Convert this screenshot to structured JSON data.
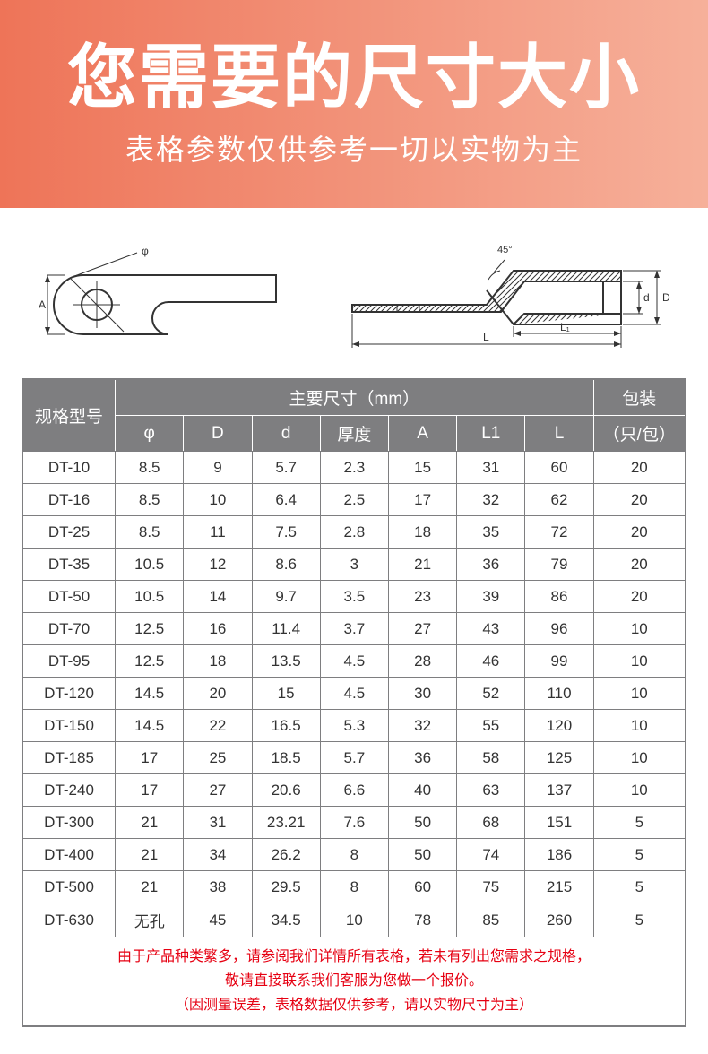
{
  "header": {
    "title": "您需要的尺寸大小",
    "subtitle": "表格参数仅供参考一切以实物为主",
    "gradient_from": "#ee7458",
    "gradient_to": "#f6b09a",
    "title_color": "#ffffff",
    "title_fontsize": 78,
    "subtitle_fontsize": 32
  },
  "diagram": {
    "stroke": "#333333",
    "angle_label": "45°",
    "dim_phi": "φ",
    "dim_A": "A",
    "dim_D": "D",
    "dim_d": "d",
    "dim_L": "L",
    "dim_L1": "L₁"
  },
  "table": {
    "header_bg": "#7e7e80",
    "header_fg": "#ffffff",
    "border_color": "#7e7e80",
    "model_header": "规格型号",
    "dims_header": "主要尺寸（mm）",
    "pack_header": "包装",
    "pack_sub": "（只/包）",
    "columns": [
      "φ",
      "D",
      "d",
      "厚度",
      "A",
      "L1",
      "L"
    ],
    "rows": [
      {
        "model": "DT-10",
        "vals": [
          "8.5",
          "9",
          "5.7",
          "2.3",
          "15",
          "31",
          "60"
        ],
        "pack": "20"
      },
      {
        "model": "DT-16",
        "vals": [
          "8.5",
          "10",
          "6.4",
          "2.5",
          "17",
          "32",
          "62"
        ],
        "pack": "20"
      },
      {
        "model": "DT-25",
        "vals": [
          "8.5",
          "11",
          "7.5",
          "2.8",
          "18",
          "35",
          "72"
        ],
        "pack": "20"
      },
      {
        "model": "DT-35",
        "vals": [
          "10.5",
          "12",
          "8.6",
          "3",
          "21",
          "36",
          "79"
        ],
        "pack": "20"
      },
      {
        "model": "DT-50",
        "vals": [
          "10.5",
          "14",
          "9.7",
          "3.5",
          "23",
          "39",
          "86"
        ],
        "pack": "20"
      },
      {
        "model": "DT-70",
        "vals": [
          "12.5",
          "16",
          "11.4",
          "3.7",
          "27",
          "43",
          "96"
        ],
        "pack": "10"
      },
      {
        "model": "DT-95",
        "vals": [
          "12.5",
          "18",
          "13.5",
          "4.5",
          "28",
          "46",
          "99"
        ],
        "pack": "10"
      },
      {
        "model": "DT-120",
        "vals": [
          "14.5",
          "20",
          "15",
          "4.5",
          "30",
          "52",
          "110"
        ],
        "pack": "10"
      },
      {
        "model": "DT-150",
        "vals": [
          "14.5",
          "22",
          "16.5",
          "5.3",
          "32",
          "55",
          "120"
        ],
        "pack": "10"
      },
      {
        "model": "DT-185",
        "vals": [
          "17",
          "25",
          "18.5",
          "5.7",
          "36",
          "58",
          "125"
        ],
        "pack": "10"
      },
      {
        "model": "DT-240",
        "vals": [
          "17",
          "27",
          "20.6",
          "6.6",
          "40",
          "63",
          "137"
        ],
        "pack": "10"
      },
      {
        "model": "DT-300",
        "vals": [
          "21",
          "31",
          "23.21",
          "7.6",
          "50",
          "68",
          "151"
        ],
        "pack": "5"
      },
      {
        "model": "DT-400",
        "vals": [
          "21",
          "34",
          "26.2",
          "8",
          "50",
          "74",
          "186"
        ],
        "pack": "5"
      },
      {
        "model": "DT-500",
        "vals": [
          "21",
          "38",
          "29.5",
          "8",
          "60",
          "75",
          "215"
        ],
        "pack": "5"
      },
      {
        "model": "DT-630",
        "vals": [
          "无孔",
          "45",
          "34.5",
          "10",
          "78",
          "85",
          "260"
        ],
        "pack": "5"
      }
    ],
    "note_line1": "由于产品种类繁多，请参阅我们详情所有表格，若未有列出您需求之规格，",
    "note_line2": "敬请直接联系我们客服为您做一个报价。",
    "note_line3": "（因测量误差，表格数据仅供参考，请以实物尺寸为主）",
    "note_color": "#e60012"
  }
}
